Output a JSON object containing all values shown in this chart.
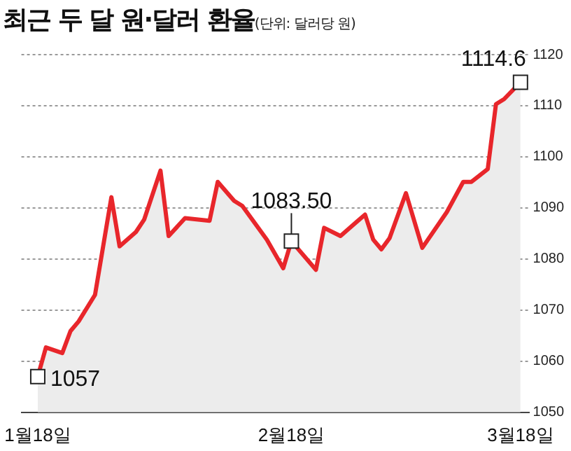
{
  "chart_data": {
    "type": "area",
    "title": "최근 두 달 원·달러 환율",
    "subtitle": "(단위: 달러당 원)",
    "x": [
      "--01-18",
      "--01-19",
      "--01-21",
      "--01-22",
      "--01-23",
      "--01-25",
      "--01-27",
      "--01-28",
      "--01-30",
      "--01-31",
      "--02-02",
      "--02-03",
      "--02-05",
      "--02-08",
      "--02-09",
      "--02-11",
      "--02-12",
      "--02-15",
      "--02-17",
      "--02-18",
      "--02-21",
      "--02-22",
      "--02-24",
      "--02-27",
      "--02-28",
      "--03-01",
      "--03-02",
      "--03-04",
      "--03-06",
      "--03-09",
      "--03-11",
      "--03-12",
      "--03-14",
      "--03-15",
      "--03-16",
      "--03-18"
    ],
    "series": [
      {
        "color": "#e8262b",
        "values": [
          1057,
          1062.7,
          1061.6,
          1065.9,
          1067.8,
          1073,
          1092.1,
          1082.5,
          1085.3,
          1087.7,
          1097.3,
          1084.5,
          1088,
          1087.5,
          1095.1,
          1091.4,
          1090.4,
          1083.8,
          1078.2,
          1083.5,
          1077.9,
          1086.1,
          1084.5,
          1088.7,
          1083.8,
          1081.9,
          1084.1,
          1092.9,
          1082.2,
          1089.2,
          1095.1,
          1095.1,
          1097.6,
          1110.3,
          1111.3,
          1114.6
        ]
      }
    ],
    "xlim": [
      "--01-16",
      "--03-19"
    ],
    "xticks": [
      {
        "value": "--01-18",
        "label": "1월18일"
      },
      {
        "value": "--02-18",
        "label": "2월18일"
      },
      {
        "value": "--03-18",
        "label": "3월18일"
      }
    ],
    "ylim": [
      1050,
      1120
    ],
    "yticks": [
      1050,
      1060,
      1070,
      1080,
      1090,
      1100,
      1110,
      1120
    ],
    "grid": "y",
    "legend": false,
    "marker": "none",
    "line_style": "solid",
    "annotations": [
      {
        "text": "1057",
        "x": "--01-18",
        "y": 1057
      },
      {
        "text": "1083.50",
        "x": "--02-18",
        "y": 1083.5
      },
      {
        "text": "1114.6",
        "x": "--03-18",
        "y": 1114.6
      }
    ]
  }
}
